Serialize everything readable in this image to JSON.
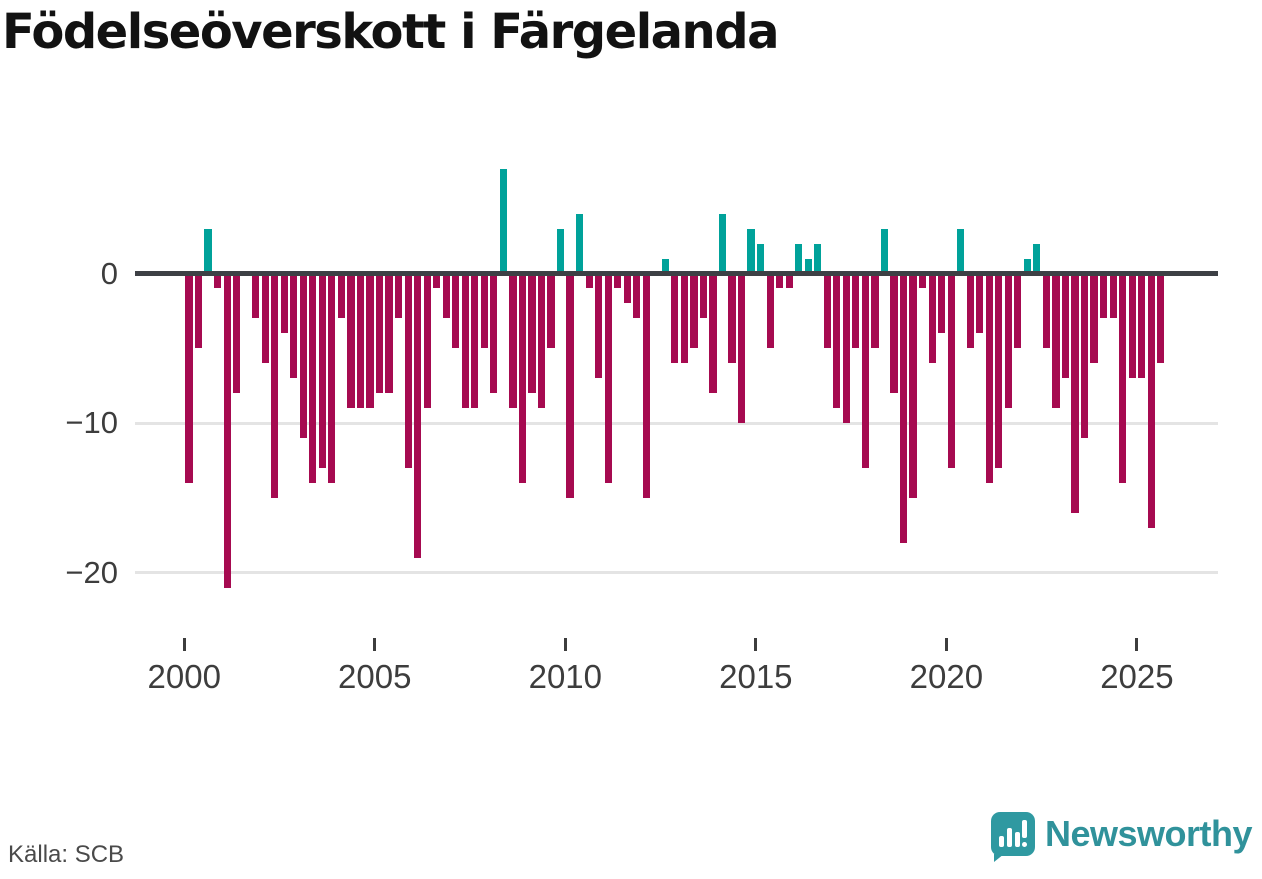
{
  "title": "Födelseöverskott i Färgelanda",
  "source": "Källa: SCB",
  "branding": {
    "name": "Newsworthy"
  },
  "colors": {
    "negative_bar": "#a60a50",
    "positive_bar": "#00a29a",
    "zero_line": "#3d4045",
    "gridline": "#e4e4e4",
    "tick_label": "#3d3d3d",
    "brand_teal": "#30929b"
  },
  "chart_data": {
    "type": "bar",
    "title": "Födelseöverskott i Färgelanda",
    "xlabel": "",
    "ylabel": "",
    "frequency": "quarterly",
    "start": "2000Q1",
    "end": "2025Q3",
    "ylim": [
      -22.5,
      8
    ],
    "grid": "horizontal",
    "y_ticks": [
      0,
      -10,
      -20
    ],
    "y_tick_labels": [
      "0",
      "−10",
      "−20"
    ],
    "x_tick_years": [
      2000,
      2005,
      2010,
      2015,
      2020,
      2025
    ],
    "x_tick_labels": [
      "2000",
      "2005",
      "2010",
      "2015",
      "2020",
      "2025"
    ],
    "values": [
      -14,
      -5,
      3,
      -1,
      -21,
      -8,
      0,
      -3,
      -6,
      -15,
      -4,
      -7,
      -11,
      -14,
      -13,
      -14,
      -3,
      -9,
      -9,
      -9,
      -8,
      -8,
      -3,
      -13,
      -19,
      -9,
      -1,
      -3,
      -5,
      -9,
      -9,
      -5,
      -8,
      7,
      -9,
      -14,
      -8,
      -9,
      -5,
      3,
      -15,
      4,
      -1,
      -7,
      -14,
      -1,
      -2,
      -3,
      -15,
      0,
      1,
      -6,
      -6,
      -5,
      -3,
      -8,
      4,
      -6,
      -10,
      3,
      2,
      -5,
      -1,
      -1,
      2,
      1,
      2,
      -5,
      -9,
      -10,
      -5,
      -13,
      -5,
      3,
      -8,
      -18,
      -15,
      -1,
      -6,
      -4,
      -13,
      3,
      -5,
      -4,
      -14,
      -13,
      -9,
      -5,
      1,
      2,
      -5,
      -9,
      -7,
      -16,
      -11,
      -6,
      -3,
      -3,
      -14,
      -7,
      -7,
      -17,
      -6
    ]
  }
}
